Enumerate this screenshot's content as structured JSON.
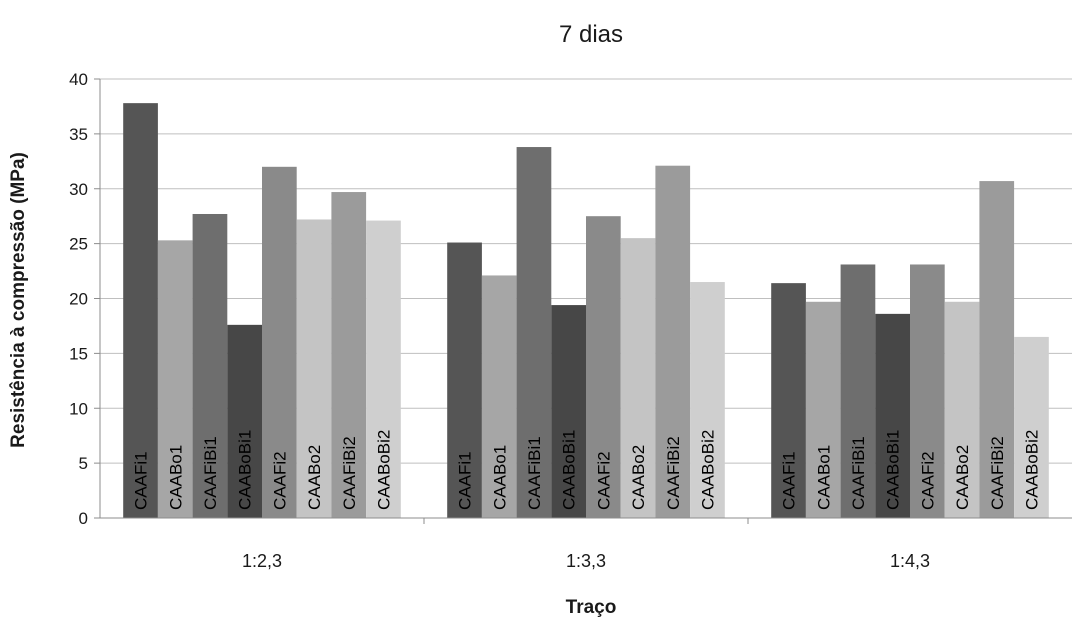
{
  "chart_data": {
    "type": "bar",
    "title": "7 dias",
    "xlabel": "Traço",
    "ylabel": "Resistência à compressão  (MPa)",
    "ylim": [
      0,
      40
    ],
    "yticks": [
      0,
      5,
      10,
      15,
      20,
      25,
      30,
      35,
      40
    ],
    "grid": true,
    "legend": "none",
    "categories": [
      "1:2,3",
      "1:3,3",
      "1:4,3"
    ],
    "series": [
      {
        "name": "CAAFi1",
        "values": [
          37.8,
          25.1,
          21.4
        ],
        "color": "#555555"
      },
      {
        "name": "CAABo1",
        "values": [
          25.3,
          22.1,
          19.7
        ],
        "color": "#a6a6a6"
      },
      {
        "name": "CAAFiBi1",
        "values": [
          27.7,
          33.8,
          23.1
        ],
        "color": "#6e6e6e"
      },
      {
        "name": "CAABoBi1",
        "values": [
          17.6,
          19.4,
          18.6
        ],
        "color": "#474747"
      },
      {
        "name": "CAAFi2",
        "values": [
          32.0,
          27.5,
          23.1
        ],
        "color": "#8a8a8a"
      },
      {
        "name": "CAABo2",
        "values": [
          27.2,
          25.5,
          19.7
        ],
        "color": "#c4c4c4"
      },
      {
        "name": "CAAFiBi2",
        "values": [
          29.7,
          32.1,
          30.7
        ],
        "color": "#9b9b9b"
      },
      {
        "name": "CAABoBi2",
        "values": [
          27.1,
          21.5,
          16.5
        ],
        "color": "#cfcfcf"
      }
    ],
    "gridline_color": "#bfbfbf"
  }
}
